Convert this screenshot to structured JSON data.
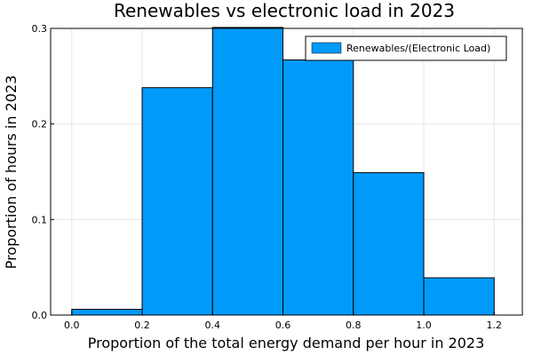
{
  "chart_data": {
    "type": "bar",
    "title": "Renewables vs electronic load in 2023",
    "xlabel": "Proportion of the total energy demand per hour in 2023",
    "ylabel": "Proportion of hours in 2023",
    "bins": [
      {
        "start": 0.0,
        "end": 0.2,
        "value": 0.006
      },
      {
        "start": 0.2,
        "end": 0.4,
        "value": 0.238
      },
      {
        "start": 0.4,
        "end": 0.6,
        "value": 0.301
      },
      {
        "start": 0.6,
        "end": 0.8,
        "value": 0.267
      },
      {
        "start": 0.8,
        "end": 1.0,
        "value": 0.149
      },
      {
        "start": 1.0,
        "end": 1.2,
        "value": 0.039
      }
    ],
    "xlim": [
      -0.06,
      1.28
    ],
    "ylim": [
      0,
      0.3
    ],
    "xticks": [
      "0.0",
      "0.2",
      "0.4",
      "0.6",
      "0.8",
      "1.0",
      "1.2"
    ],
    "xtick_values": [
      0.0,
      0.2,
      0.4,
      0.6,
      0.8,
      1.0,
      1.2
    ],
    "yticks": [
      "0.0",
      "0.1",
      "0.2",
      "0.3"
    ],
    "ytick_values": [
      0.0,
      0.1,
      0.2,
      0.3
    ],
    "grid": true,
    "legend": {
      "placement": "top-right",
      "entries": [
        {
          "name": "Renewables/(Electronic Load)",
          "color": "#009af9"
        }
      ]
    },
    "bar_color": "#009af9"
  }
}
